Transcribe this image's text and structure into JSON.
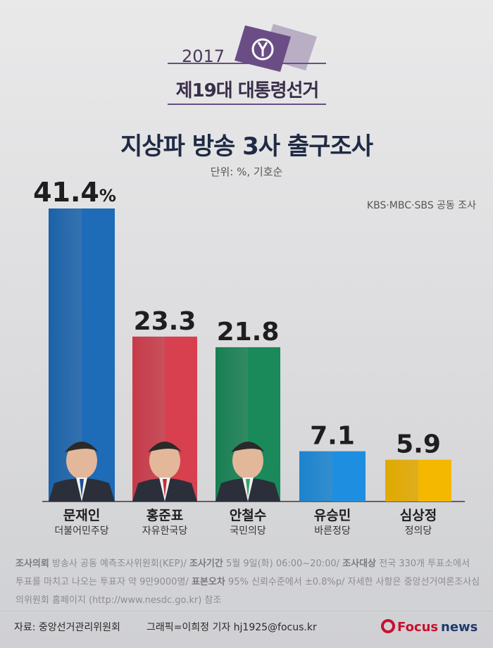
{
  "header": {
    "year": "2017",
    "election": "제19대 대통령선거",
    "title": "지상파 방송 3사 출구조사",
    "unit": "단위: %, 기호순",
    "joint": "KBS·MBC·SBS 공동 조사"
  },
  "chart_data": {
    "type": "bar",
    "title": "지상파 방송 3사 출구조사",
    "categories": [
      "문재인",
      "홍준표",
      "안철수",
      "유승민",
      "심상정"
    ],
    "parties": [
      "더불어민주당",
      "자유한국당",
      "국민의당",
      "바른정당",
      "정의당"
    ],
    "values": [
      41.4,
      23.3,
      21.8,
      7.1,
      5.9
    ],
    "value_labels": [
      "41.4",
      "23.3",
      "21.8",
      "7.1",
      "5.9"
    ],
    "unit_suffix": "%",
    "colors": [
      "#1e6bb8",
      "#d8404f",
      "#1a8a5a",
      "#1e8fe0",
      "#f5b800"
    ],
    "ylim": [
      0,
      41.4
    ]
  },
  "notes": {
    "client_label": "조사의뢰",
    "client": "방송사 공동 예측조사위원회(KEP)/",
    "period_label": "조사기간",
    "period": "5월 9일(화) 06:00~20:00/",
    "target_label": "조사대상",
    "target": "전국 330개 투표소에서 투표를 마치고 나오는 투표자 약 9만9000명/",
    "error_label": "표본오차",
    "error": "95% 신뢰수준에서 ±0.8%p/",
    "detail": "자세한 사항은 중앙선거여론조사심의위원회 홈페이지 (http://www.nesdc.go.kr) 참조"
  },
  "footer": {
    "source": "자료: 중앙선거관리위원회",
    "credit": "그래픽=이희정 기자  hj1925@focus.kr",
    "brand_focus": "Focus",
    "brand_news": "news"
  }
}
